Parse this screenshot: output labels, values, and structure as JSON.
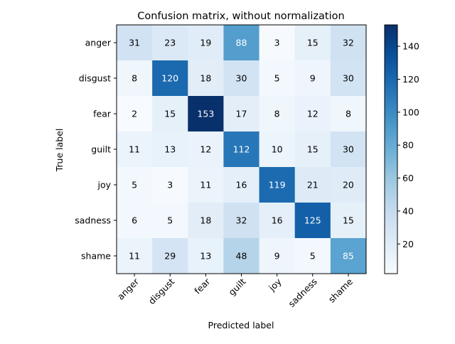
{
  "chart_data": {
    "type": "heatmap",
    "title": "Confusion matrix, without normalization",
    "xlabel": "Predicted label",
    "ylabel": "True label",
    "x_categories": [
      "anger",
      "disgust",
      "fear",
      "guilt",
      "joy",
      "sadness",
      "shame"
    ],
    "y_categories": [
      "anger",
      "disgust",
      "fear",
      "guilt",
      "joy",
      "sadness",
      "shame"
    ],
    "values": [
      [
        31,
        23,
        19,
        88,
        3,
        15,
        32
      ],
      [
        8,
        120,
        18,
        30,
        5,
        9,
        30
      ],
      [
        2,
        15,
        153,
        17,
        8,
        12,
        8
      ],
      [
        11,
        13,
        12,
        112,
        10,
        15,
        30
      ],
      [
        5,
        3,
        11,
        16,
        119,
        21,
        20
      ],
      [
        6,
        5,
        18,
        32,
        16,
        125,
        15
      ],
      [
        11,
        29,
        13,
        48,
        9,
        5,
        85
      ]
    ],
    "colormap": "Blues",
    "value_range": [
      2,
      153
    ],
    "colorbar_ticks": [
      20,
      40,
      60,
      80,
      100,
      120,
      140
    ],
    "colorbar_labels": [
      "20",
      "40",
      "60",
      "80",
      "100",
      "120",
      "140"
    ],
    "text_color_threshold": 76.5,
    "text_colors": {
      "dark": "#000000",
      "light": "#ffffff"
    },
    "grid": false,
    "colorbar_position": "right"
  }
}
